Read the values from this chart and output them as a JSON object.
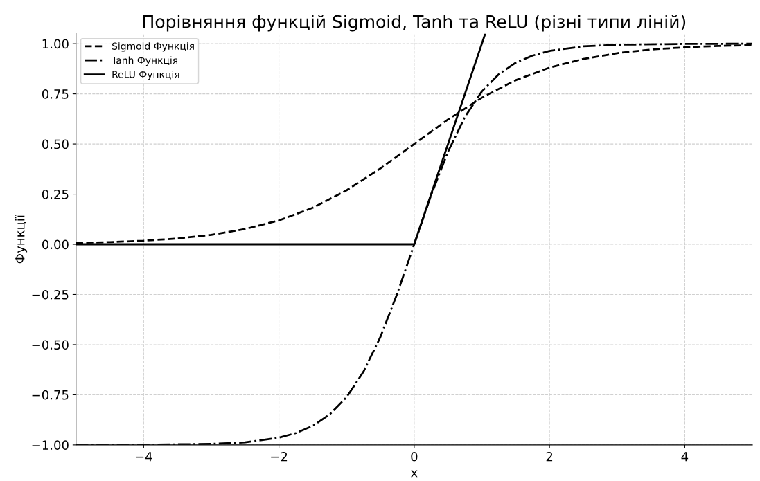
{
  "chart_data": {
    "type": "line",
    "title": "Порівняння функцій Sigmoid, Tanh та ReLU (різні типи ліній)",
    "xlabel": "x",
    "ylabel": "Функції",
    "series": [
      {
        "name": "Sigmoid Функція",
        "color": "#000000",
        "line_style": "dashed",
        "x": [
          -5,
          -4.5,
          -4,
          -3.5,
          -3,
          -2.5,
          -2,
          -1.5,
          -1,
          -0.5,
          0,
          0.5,
          1,
          1.5,
          2,
          2.5,
          3,
          3.5,
          4,
          4.5,
          5
        ],
        "values": [
          0.007,
          0.011,
          0.018,
          0.029,
          0.047,
          0.076,
          0.119,
          0.182,
          0.269,
          0.378,
          0.5,
          0.622,
          0.731,
          0.818,
          0.881,
          0.924,
          0.953,
          0.971,
          0.982,
          0.989,
          0.993
        ]
      },
      {
        "name": "Tanh Функція",
        "color": "#000000",
        "line_style": "dashdot",
        "x": [
          -5,
          -4,
          -3,
          -2.5,
          -2,
          -1.75,
          -1.5,
          -1.25,
          -1,
          -0.75,
          -0.5,
          -0.25,
          0,
          0.25,
          0.5,
          0.75,
          1,
          1.25,
          1.5,
          1.75,
          2,
          2.5,
          3,
          4,
          5
        ],
        "values": [
          -1.0,
          -0.999,
          -0.995,
          -0.987,
          -0.964,
          -0.941,
          -0.905,
          -0.848,
          -0.762,
          -0.635,
          -0.462,
          -0.245,
          0,
          0.245,
          0.462,
          0.635,
          0.762,
          0.848,
          0.905,
          0.941,
          0.964,
          0.987,
          0.995,
          0.999,
          1.0
        ]
      },
      {
        "name": "ReLU Функція",
        "color": "#000000",
        "line_style": "solid",
        "x": [
          -5,
          0,
          1.05
        ],
        "values": [
          0,
          0,
          1.05
        ]
      }
    ],
    "xlim": [
      -5,
      5
    ],
    "ylim": [
      -1,
      1.05
    ],
    "xticks": [
      {
        "value": -4,
        "label": "−4"
      },
      {
        "value": -2,
        "label": "−2"
      },
      0,
      2,
      4
    ],
    "yticks": [
      {
        "value": -1,
        "label": "−1.00"
      },
      {
        "value": -0.75,
        "label": "−0.75"
      },
      {
        "value": -0.5,
        "label": "−0.50"
      },
      {
        "value": -0.25,
        "label": "−0.25"
      },
      {
        "value": 0,
        "label": "0.00"
      },
      {
        "value": 0.25,
        "label": "0.25"
      },
      {
        "value": 0.5,
        "label": "0.50"
      },
      {
        "value": 0.75,
        "label": "0.75"
      },
      {
        "value": 1,
        "label": "1.00"
      }
    ],
    "grid": true,
    "legend": "top left",
    "marker": "none"
  }
}
